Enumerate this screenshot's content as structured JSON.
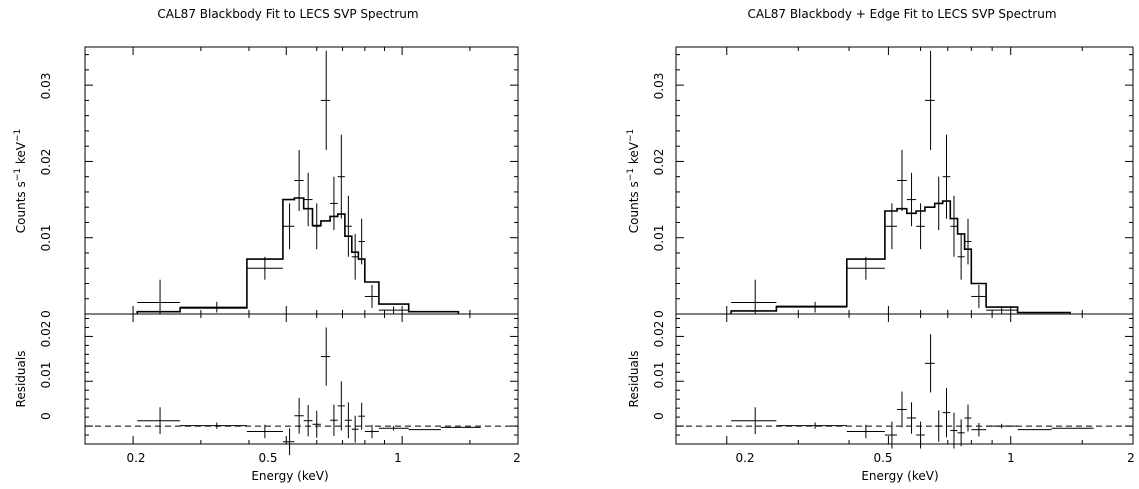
{
  "chart_data": [
    {
      "type": "step",
      "title": "CAL87 Blackbody Fit to LECS SVP Spectrum",
      "xlabel": "Energy (keV)",
      "x_scale": "log",
      "xlim": [
        0.15,
        2
      ],
      "x_ticks": [
        "0.2",
        "0.5",
        "1",
        "2"
      ],
      "top_panel": {
        "ylabel_parts": [
          "Counts s",
          "−1",
          " keV",
          "−1"
        ],
        "ylim": [
          0,
          0.035
        ],
        "y_ticks": [
          "0",
          "0.01",
          "0.02",
          "0.03"
        ],
        "data": [
          {
            "x": 0.235,
            "xlo": 0.205,
            "xhi": 0.265,
            "y": 0.0015,
            "ylo": 0.0,
            "yhi": 0.0045
          },
          {
            "x": 0.33,
            "xlo": 0.265,
            "xhi": 0.395,
            "y": 0.0009,
            "ylo": 0.0002,
            "yhi": 0.0016
          },
          {
            "x": 0.44,
            "xlo": 0.395,
            "xhi": 0.49,
            "y": 0.006,
            "ylo": 0.0045,
            "yhi": 0.0075
          },
          {
            "x": 0.51,
            "xlo": 0.49,
            "xhi": 0.525,
            "y": 0.0115,
            "ylo": 0.0085,
            "yhi": 0.0145
          },
          {
            "x": 0.54,
            "xlo": 0.525,
            "xhi": 0.555,
            "y": 0.0175,
            "ylo": 0.0135,
            "yhi": 0.0215
          },
          {
            "x": 0.57,
            "xlo": 0.555,
            "xhi": 0.585,
            "y": 0.015,
            "ylo": 0.0115,
            "yhi": 0.0185
          },
          {
            "x": 0.6,
            "xlo": 0.585,
            "xhi": 0.615,
            "y": 0.0115,
            "ylo": 0.0085,
            "yhi": 0.0145
          },
          {
            "x": 0.635,
            "xlo": 0.615,
            "xhi": 0.65,
            "y": 0.028,
            "ylo": 0.0215,
            "yhi": 0.0345
          },
          {
            "x": 0.665,
            "xlo": 0.65,
            "xhi": 0.68,
            "y": 0.0145,
            "ylo": 0.011,
            "yhi": 0.018
          },
          {
            "x": 0.695,
            "xlo": 0.68,
            "xhi": 0.71,
            "y": 0.018,
            "ylo": 0.0125,
            "yhi": 0.0235
          },
          {
            "x": 0.725,
            "xlo": 0.71,
            "xhi": 0.74,
            "y": 0.0115,
            "ylo": 0.0075,
            "yhi": 0.0155
          },
          {
            "x": 0.755,
            "xlo": 0.74,
            "xhi": 0.77,
            "y": 0.0075,
            "ylo": 0.0045,
            "yhi": 0.0105
          },
          {
            "x": 0.785,
            "xlo": 0.77,
            "xhi": 0.8,
            "y": 0.0095,
            "ylo": 0.0065,
            "yhi": 0.0125
          },
          {
            "x": 0.835,
            "xlo": 0.8,
            "xhi": 0.87,
            "y": 0.0023,
            "ylo": 0.0008,
            "yhi": 0.0038
          },
          {
            "x": 0.95,
            "xlo": 0.87,
            "xhi": 1.04,
            "y": 0.0005,
            "ylo": 0.0,
            "yhi": 0.001
          }
        ],
        "model_edges": [
          0.205,
          0.265,
          0.395,
          0.49,
          0.525,
          0.555,
          0.585,
          0.615,
          0.65,
          0.68,
          0.71,
          0.74,
          0.77,
          0.8,
          0.87,
          1.04,
          1.4
        ],
        "model_values": [
          0.0003,
          0.0008,
          0.0072,
          0.015,
          0.0152,
          0.0138,
          0.0116,
          0.0122,
          0.0128,
          0.0131,
          0.0102,
          0.0081,
          0.0072,
          0.0042,
          0.0013,
          0.0003
        ]
      },
      "bottom_panel": {
        "ylabel": "Residuals",
        "ylim": [
          -0.004,
          0.025
        ],
        "y_ticks": [
          "0",
          "0.01",
          "0.02"
        ],
        "baseline": 0,
        "data": [
          {
            "x": 0.235,
            "xlo": 0.205,
            "xhi": 0.265,
            "y": 0.0012,
            "ylo": -0.0018,
            "yhi": 0.0042
          },
          {
            "x": 0.33,
            "xlo": 0.265,
            "xhi": 0.395,
            "y": 0.0001,
            "ylo": -0.0006,
            "yhi": 0.0008
          },
          {
            "x": 0.44,
            "xlo": 0.395,
            "xhi": 0.49,
            "y": -0.0012,
            "ylo": -0.0027,
            "yhi": 0.0003
          },
          {
            "x": 0.51,
            "xlo": 0.49,
            "xhi": 0.525,
            "y": -0.0035,
            "ylo": -0.0065,
            "yhi": -0.0005
          },
          {
            "x": 0.54,
            "xlo": 0.525,
            "xhi": 0.555,
            "y": 0.0023,
            "ylo": -0.0017,
            "yhi": 0.0063
          },
          {
            "x": 0.57,
            "xlo": 0.555,
            "xhi": 0.585,
            "y": 0.0012,
            "ylo": -0.0023,
            "yhi": 0.0047
          },
          {
            "x": 0.6,
            "xlo": 0.585,
            "xhi": 0.615,
            "y": 0.0004,
            "ylo": -0.0026,
            "yhi": 0.0034
          },
          {
            "x": 0.635,
            "xlo": 0.615,
            "xhi": 0.65,
            "y": 0.0155,
            "ylo": 0.009,
            "yhi": 0.022
          },
          {
            "x": 0.665,
            "xlo": 0.65,
            "xhi": 0.68,
            "y": 0.0013,
            "ylo": -0.0022,
            "yhi": 0.0048
          },
          {
            "x": 0.695,
            "xlo": 0.68,
            "xhi": 0.71,
            "y": 0.0045,
            "ylo": -0.001,
            "yhi": 0.01
          },
          {
            "x": 0.725,
            "xlo": 0.71,
            "xhi": 0.74,
            "y": 0.0013,
            "ylo": -0.0027,
            "yhi": 0.0053
          },
          {
            "x": 0.755,
            "xlo": 0.74,
            "xhi": 0.77,
            "y": -0.0007,
            "ylo": -0.0037,
            "yhi": 0.0023
          },
          {
            "x": 0.785,
            "xlo": 0.77,
            "xhi": 0.8,
            "y": 0.0022,
            "ylo": -0.0008,
            "yhi": 0.0052
          },
          {
            "x": 0.835,
            "xlo": 0.8,
            "xhi": 0.87,
            "y": -0.0012,
            "ylo": -0.0027,
            "yhi": 0.0003
          },
          {
            "x": 0.95,
            "xlo": 0.87,
            "xhi": 1.04,
            "y": -0.0005,
            "ylo": -0.001,
            "yhi": 0.0
          },
          {
            "x": 1.15,
            "xlo": 1.04,
            "xhi": 1.26,
            "y": -0.0008,
            "ylo": -0.0008,
            "yhi": -0.0008
          },
          {
            "x": 1.42,
            "xlo": 1.26,
            "xhi": 1.6,
            "y": -0.0003,
            "ylo": -0.0003,
            "yhi": -0.0003
          }
        ]
      }
    },
    {
      "type": "step",
      "title": "CAL87 Blackbody + Edge Fit to LECS SVP Spectrum",
      "xlabel": "Energy (keV)",
      "x_scale": "log",
      "xlim": [
        0.15,
        2
      ],
      "x_ticks": [
        "0.2",
        "0.5",
        "1",
        "2"
      ],
      "top_panel": {
        "ylabel_parts": [
          "Counts s",
          "−1",
          " keV",
          "−1"
        ],
        "ylim": [
          0,
          0.035
        ],
        "y_ticks": [
          "0",
          "0.01",
          "0.02",
          "0.03"
        ],
        "data": [
          {
            "x": 0.235,
            "xlo": 0.205,
            "xhi": 0.265,
            "y": 0.0015,
            "ylo": 0.0,
            "yhi": 0.0045
          },
          {
            "x": 0.33,
            "xlo": 0.265,
            "xhi": 0.395,
            "y": 0.0009,
            "ylo": 0.0002,
            "yhi": 0.0016
          },
          {
            "x": 0.44,
            "xlo": 0.395,
            "xhi": 0.49,
            "y": 0.006,
            "ylo": 0.0045,
            "yhi": 0.0075
          },
          {
            "x": 0.51,
            "xlo": 0.49,
            "xhi": 0.525,
            "y": 0.0115,
            "ylo": 0.0085,
            "yhi": 0.0145
          },
          {
            "x": 0.54,
            "xlo": 0.525,
            "xhi": 0.555,
            "y": 0.0175,
            "ylo": 0.0135,
            "yhi": 0.0215
          },
          {
            "x": 0.57,
            "xlo": 0.555,
            "xhi": 0.585,
            "y": 0.015,
            "ylo": 0.0115,
            "yhi": 0.0185
          },
          {
            "x": 0.6,
            "xlo": 0.585,
            "xhi": 0.615,
            "y": 0.0115,
            "ylo": 0.0085,
            "yhi": 0.0145
          },
          {
            "x": 0.635,
            "xlo": 0.615,
            "xhi": 0.65,
            "y": 0.028,
            "ylo": 0.0215,
            "yhi": 0.0345
          },
          {
            "x": 0.665,
            "xlo": 0.65,
            "xhi": 0.68,
            "y": 0.0145,
            "ylo": 0.011,
            "yhi": 0.018
          },
          {
            "x": 0.695,
            "xlo": 0.68,
            "xhi": 0.71,
            "y": 0.018,
            "ylo": 0.0125,
            "yhi": 0.0235
          },
          {
            "x": 0.725,
            "xlo": 0.71,
            "xhi": 0.74,
            "y": 0.0115,
            "ylo": 0.0075,
            "yhi": 0.0155
          },
          {
            "x": 0.755,
            "xlo": 0.74,
            "xhi": 0.77,
            "y": 0.0075,
            "ylo": 0.0045,
            "yhi": 0.0105
          },
          {
            "x": 0.785,
            "xlo": 0.77,
            "xhi": 0.8,
            "y": 0.0095,
            "ylo": 0.0065,
            "yhi": 0.0125
          },
          {
            "x": 0.835,
            "xlo": 0.8,
            "xhi": 0.87,
            "y": 0.0023,
            "ylo": 0.0008,
            "yhi": 0.0038
          },
          {
            "x": 0.95,
            "xlo": 0.87,
            "xhi": 1.04,
            "y": 0.0005,
            "ylo": 0.0,
            "yhi": 0.001
          }
        ],
        "model_edges": [
          0.205,
          0.265,
          0.395,
          0.49,
          0.525,
          0.555,
          0.585,
          0.615,
          0.65,
          0.68,
          0.71,
          0.74,
          0.77,
          0.8,
          0.87,
          1.04,
          1.4
        ],
        "model_values": [
          0.0004,
          0.001,
          0.0072,
          0.0135,
          0.0138,
          0.0132,
          0.0135,
          0.014,
          0.0145,
          0.0148,
          0.0125,
          0.0105,
          0.0085,
          0.004,
          0.0009,
          0.0002
        ]
      },
      "bottom_panel": {
        "ylabel": "Residuals",
        "ylim": [
          -0.004,
          0.025
        ],
        "y_ticks": [
          "0",
          "0.01",
          "0.02"
        ],
        "baseline": 0,
        "data": [
          {
            "x": 0.235,
            "xlo": 0.205,
            "xhi": 0.265,
            "y": 0.0012,
            "ylo": -0.0018,
            "yhi": 0.0042
          },
          {
            "x": 0.33,
            "xlo": 0.265,
            "xhi": 0.395,
            "y": 0.0001,
            "ylo": -0.0006,
            "yhi": 0.0008
          },
          {
            "x": 0.44,
            "xlo": 0.395,
            "xhi": 0.49,
            "y": -0.0012,
            "ylo": -0.0027,
            "yhi": 0.0003
          },
          {
            "x": 0.51,
            "xlo": 0.49,
            "xhi": 0.525,
            "y": -0.002,
            "ylo": -0.005,
            "yhi": 0.001
          },
          {
            "x": 0.54,
            "xlo": 0.525,
            "xhi": 0.555,
            "y": 0.0037,
            "ylo": -0.0003,
            "yhi": 0.0077
          },
          {
            "x": 0.57,
            "xlo": 0.555,
            "xhi": 0.585,
            "y": 0.0018,
            "ylo": -0.0017,
            "yhi": 0.0053
          },
          {
            "x": 0.6,
            "xlo": 0.585,
            "xhi": 0.615,
            "y": -0.002,
            "ylo": -0.005,
            "yhi": 0.001
          },
          {
            "x": 0.635,
            "xlo": 0.615,
            "xhi": 0.65,
            "y": 0.014,
            "ylo": 0.0075,
            "yhi": 0.0205
          },
          {
            "x": 0.665,
            "xlo": 0.65,
            "xhi": 0.68,
            "y": 0.0,
            "ylo": -0.0035,
            "yhi": 0.0035
          },
          {
            "x": 0.695,
            "xlo": 0.68,
            "xhi": 0.71,
            "y": 0.003,
            "ylo": -0.0025,
            "yhi": 0.0085
          },
          {
            "x": 0.725,
            "xlo": 0.71,
            "xhi": 0.74,
            "y": -0.001,
            "ylo": -0.005,
            "yhi": 0.003
          },
          {
            "x": 0.755,
            "xlo": 0.74,
            "xhi": 0.77,
            "y": -0.0015,
            "ylo": -0.0045,
            "yhi": 0.0015
          },
          {
            "x": 0.785,
            "xlo": 0.77,
            "xhi": 0.8,
            "y": 0.0018,
            "ylo": -0.0012,
            "yhi": 0.0048
          },
          {
            "x": 0.835,
            "xlo": 0.8,
            "xhi": 0.87,
            "y": -0.0008,
            "ylo": -0.0023,
            "yhi": 0.0007
          },
          {
            "x": 0.95,
            "xlo": 0.87,
            "xhi": 1.04,
            "y": 0.0,
            "ylo": -0.0005,
            "yhi": 0.0005
          },
          {
            "x": 1.15,
            "xlo": 1.04,
            "xhi": 1.26,
            "y": -0.0008,
            "ylo": -0.0008,
            "yhi": -0.0008
          },
          {
            "x": 1.42,
            "xlo": 1.26,
            "xhi": 1.6,
            "y": -0.0005,
            "ylo": -0.0005,
            "yhi": -0.0005
          }
        ]
      }
    }
  ]
}
